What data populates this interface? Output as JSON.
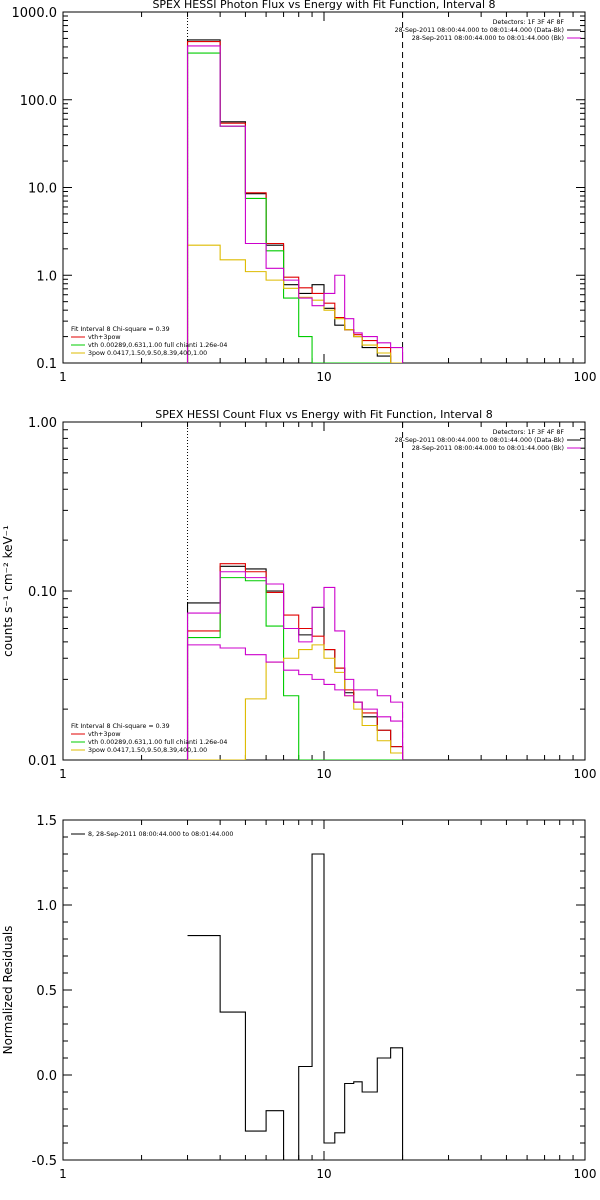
{
  "chart_data": [
    {
      "type": "line",
      "title": "SPEX HESSI Photon Flux vs Energy with Fit Function, Interval 8",
      "xlabel": "",
      "ylabel": "",
      "xscale": "log",
      "yscale": "log",
      "xlim": [
        1,
        100
      ],
      "ylim": [
        0.1,
        1000
      ],
      "x_ticks": [
        "1",
        "10",
        "100"
      ],
      "y_ticks": [
        "0.1",
        "1.0",
        "10.0",
        "100.0",
        "1000.0"
      ],
      "vlines": [
        {
          "x": 3,
          "style": "dotted"
        },
        {
          "x": 20,
          "style": "dashed"
        }
      ],
      "legend_topright": [
        {
          "text": "Detectors: 1F 3F 4F 8F",
          "color": ""
        },
        {
          "text": "28-Sep-2011 08:00:44.000 to 08:01:44.000 (Data-Bk)",
          "color": "#000000"
        },
        {
          "text": "28-Sep-2011 08:00:44.000 to 08:01:44.000 (Bk)",
          "color": "#cc00cc"
        }
      ],
      "legend_bottomleft": [
        {
          "text": "Fit Interval 8   Chi-square = 0.39",
          "color": ""
        },
        {
          "text": "vth+3pow",
          "color": "#e00000"
        },
        {
          "text": "vth 0.00289,0.631,1.00  full chianti 1.26e-04",
          "color": "#00cc00"
        },
        {
          "text": "3pow 0.0417,1.50,9.50,8.39,400,1.00",
          "color": "#ddbb00"
        }
      ],
      "bin_edges": [
        3,
        4,
        5,
        6,
        7,
        8,
        9,
        10,
        11,
        12,
        13,
        14,
        16,
        18,
        20
      ],
      "series": [
        {
          "name": "28-Sep-2011 08:00:44.000 to 08:01:44.000 (Data-Bk)",
          "color": "#000000",
          "values": [
            480,
            56,
            8.5,
            2.2,
            0.78,
            0.62,
            0.78,
            0.42,
            0.27,
            0.24,
            0.2,
            0.15,
            0.12,
            0.1
          ]
        },
        {
          "name": "vth+3pow",
          "color": "#e00000",
          "values": [
            460,
            54,
            8.7,
            2.3,
            0.95,
            0.72,
            0.62,
            0.48,
            0.33,
            0.24,
            0.21,
            0.18,
            0.15,
            0.1
          ]
        },
        {
          "name": "vth 0.00289,0.631,1.00  full chianti 1.26e-04",
          "color": "#00cc00",
          "values": [
            340,
            50,
            7.5,
            1.9,
            0.55,
            0.2,
            0.1,
            0.1,
            0.1,
            0.1,
            0.1,
            0.1,
            0.1,
            0.1
          ]
        },
        {
          "name": "3pow 0.0417,1.50,9.50,8.39,400,1.00",
          "color": "#ddbb00",
          "values": [
            2.2,
            1.5,
            1.1,
            0.88,
            0.71,
            0.56,
            0.52,
            0.4,
            0.32,
            0.24,
            0.2,
            0.16,
            0.13,
            0.1
          ]
        },
        {
          "name": "28-Sep-2011 08:00:44.000 to 08:01:44.000 (Bk)",
          "color": "#cc00cc",
          "values": [
            410,
            50,
            2.3,
            1.2,
            0.88,
            0.55,
            0.45,
            0.62,
            1.0,
            0.32,
            0.22,
            0.2,
            0.17,
            0.15
          ]
        }
      ]
    },
    {
      "type": "line",
      "title": "SPEX HESSI Count Flux vs Energy with Fit Function, Interval 8",
      "xlabel": "",
      "ylabel": "counts s⁻¹ cm⁻² keV⁻¹",
      "xscale": "log",
      "yscale": "log",
      "xlim": [
        1,
        100
      ],
      "ylim": [
        0.01,
        1
      ],
      "x_ticks": [
        "1",
        "10",
        "100"
      ],
      "y_ticks": [
        "0.01",
        "0.10",
        "1.00"
      ],
      "vlines": [
        {
          "x": 3,
          "style": "dotted"
        },
        {
          "x": 20,
          "style": "dashed"
        }
      ],
      "legend_topright": [
        {
          "text": "Detectors: 1F 3F 4F 8F",
          "color": ""
        },
        {
          "text": "28-Sep-2011 08:00:44.000 to 08:01:44.000 (Data-Bk)",
          "color": "#000000"
        },
        {
          "text": "28-Sep-2011 08:00:44.000 to 08:01:44.000 (Bk)",
          "color": "#cc00cc"
        }
      ],
      "legend_bottomleft": [
        {
          "text": "Fit Interval 8   Chi-square = 0.39",
          "color": ""
        },
        {
          "text": "vth+3pow",
          "color": "#e00000"
        },
        {
          "text": "vth 0.00289,0.631,1.00  full chianti 1.26e-04",
          "color": "#00cc00"
        },
        {
          "text": "3pow 0.0417,1.50,9.50,8.39,400,1.00",
          "color": "#ddbb00"
        }
      ],
      "bin_edges": [
        3,
        4,
        5,
        6,
        7,
        8,
        9,
        10,
        11,
        12,
        13,
        14,
        16,
        18,
        20
      ],
      "series": [
        {
          "name": "28-Sep-2011 08:00:44.000 to 08:01:44.000 (Data-Bk)",
          "color": "#000000",
          "values": [
            0.085,
            0.14,
            0.135,
            0.1,
            0.06,
            0.055,
            0.08,
            0.045,
            0.035,
            0.025,
            0.022,
            0.018,
            0.015,
            0.012
          ]
        },
        {
          "name": "vth+3pow",
          "color": "#e00000",
          "values": [
            0.058,
            0.145,
            0.13,
            0.098,
            0.072,
            0.06,
            0.054,
            0.045,
            0.035,
            0.026,
            0.022,
            0.019,
            0.015,
            0.012
          ]
        },
        {
          "name": "vth 0.00289,0.631,1.00  full chianti 1.26e-04",
          "color": "#00cc00",
          "values": [
            0.053,
            0.12,
            0.115,
            0.062,
            0.024,
            0.01,
            0.01,
            0.01,
            0.01,
            0.01,
            0.01,
            0.01,
            0.01,
            0.01
          ]
        },
        {
          "name": "3pow 0.0417,1.50,9.50,8.39,400,1.00",
          "color": "#ddbb00",
          "values": [
            0.01,
            0.01,
            0.023,
            0.038,
            0.04,
            0.045,
            0.048,
            0.04,
            0.033,
            0.024,
            0.02,
            0.016,
            0.013,
            0.011
          ]
        },
        {
          "name": "28-Sep-2011 08:00:44.000 to 08:01:44.000 (Bk)",
          "color": "#cc00cc",
          "values": [
            0.074,
            0.13,
            0.12,
            0.11,
            0.06,
            0.05,
            0.08,
            0.105,
            0.058,
            0.03,
            0.026,
            0.026,
            0.024,
            0.022
          ]
        },
        {
          "name": "",
          "color": "#cc00cc",
          "values": [
            0.048,
            0.046,
            0.042,
            0.038,
            0.034,
            0.032,
            0.03,
            0.028,
            0.026,
            0.024,
            0.022,
            0.02,
            0.018,
            0.017
          ]
        }
      ]
    },
    {
      "type": "line",
      "title": "",
      "xlabel": "",
      "ylabel": "Normalized Residuals",
      "xscale": "log",
      "yscale": "linear",
      "xlim": [
        1,
        100
      ],
      "ylim": [
        -0.5,
        1.5
      ],
      "x_ticks": [
        "1",
        "10",
        "100"
      ],
      "y_ticks": [
        "-0.5",
        "0.0",
        "0.5",
        "1.0",
        "1.5"
      ],
      "legend_topleft": [
        {
          "text": "8, 28-Sep-2011 08:00:44.000 to 08:01:44.000",
          "color": "#000000"
        }
      ],
      "bin_edges": [
        3,
        4,
        5,
        6,
        7,
        8,
        9,
        10,
        11,
        12,
        13,
        14,
        16,
        18,
        20
      ],
      "series": [
        {
          "name": "8, 28-Sep-2011 08:00:44.000 to 08:01:44.000",
          "color": "#000000",
          "values": [
            0.82,
            0.37,
            -0.33,
            -0.21,
            -0.55,
            0.05,
            1.3,
            -0.4,
            -0.34,
            -0.05,
            -0.04,
            -0.1,
            0.1,
            0.16
          ]
        }
      ]
    }
  ]
}
